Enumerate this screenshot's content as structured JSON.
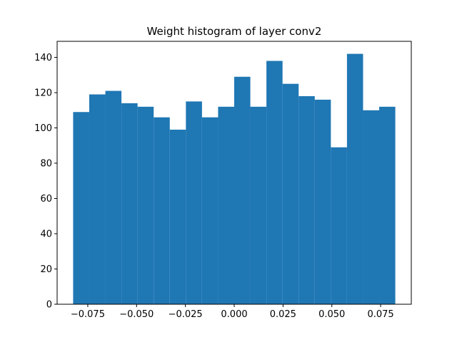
{
  "chart_data": {
    "type": "bar",
    "title": "Weight histogram of layer conv2",
    "xlabel": "",
    "ylabel": "",
    "bin_edges": [
      -0.0825,
      -0.07425,
      -0.066,
      -0.05775,
      -0.0495,
      -0.04125,
      -0.033,
      -0.02475,
      -0.0165,
      -0.00825,
      0.0,
      0.00825,
      0.0165,
      0.02475,
      0.033,
      0.04125,
      0.0495,
      0.05775,
      0.066,
      0.07425,
      0.0825
    ],
    "values": [
      109,
      119,
      121,
      114,
      112,
      106,
      99,
      115,
      106,
      112,
      129,
      112,
      138,
      125,
      118,
      116,
      89,
      142,
      110,
      112
    ],
    "xlim": [
      -0.0907,
      0.0907
    ],
    "ylim": [
      0,
      149.1
    ],
    "xticks": [
      -0.075,
      -0.05,
      -0.025,
      0.0,
      0.025,
      0.05,
      0.075
    ],
    "xtick_labels": [
      "−0.075",
      "−0.050",
      "−0.025",
      "0.000",
      "0.025",
      "0.050",
      "0.075"
    ],
    "yticks": [
      0,
      20,
      40,
      60,
      80,
      100,
      120,
      140
    ],
    "ytick_labels": [
      "0",
      "20",
      "40",
      "60",
      "80",
      "100",
      "120",
      "140"
    ],
    "grid": false,
    "bar_color": "#1f77b4"
  }
}
